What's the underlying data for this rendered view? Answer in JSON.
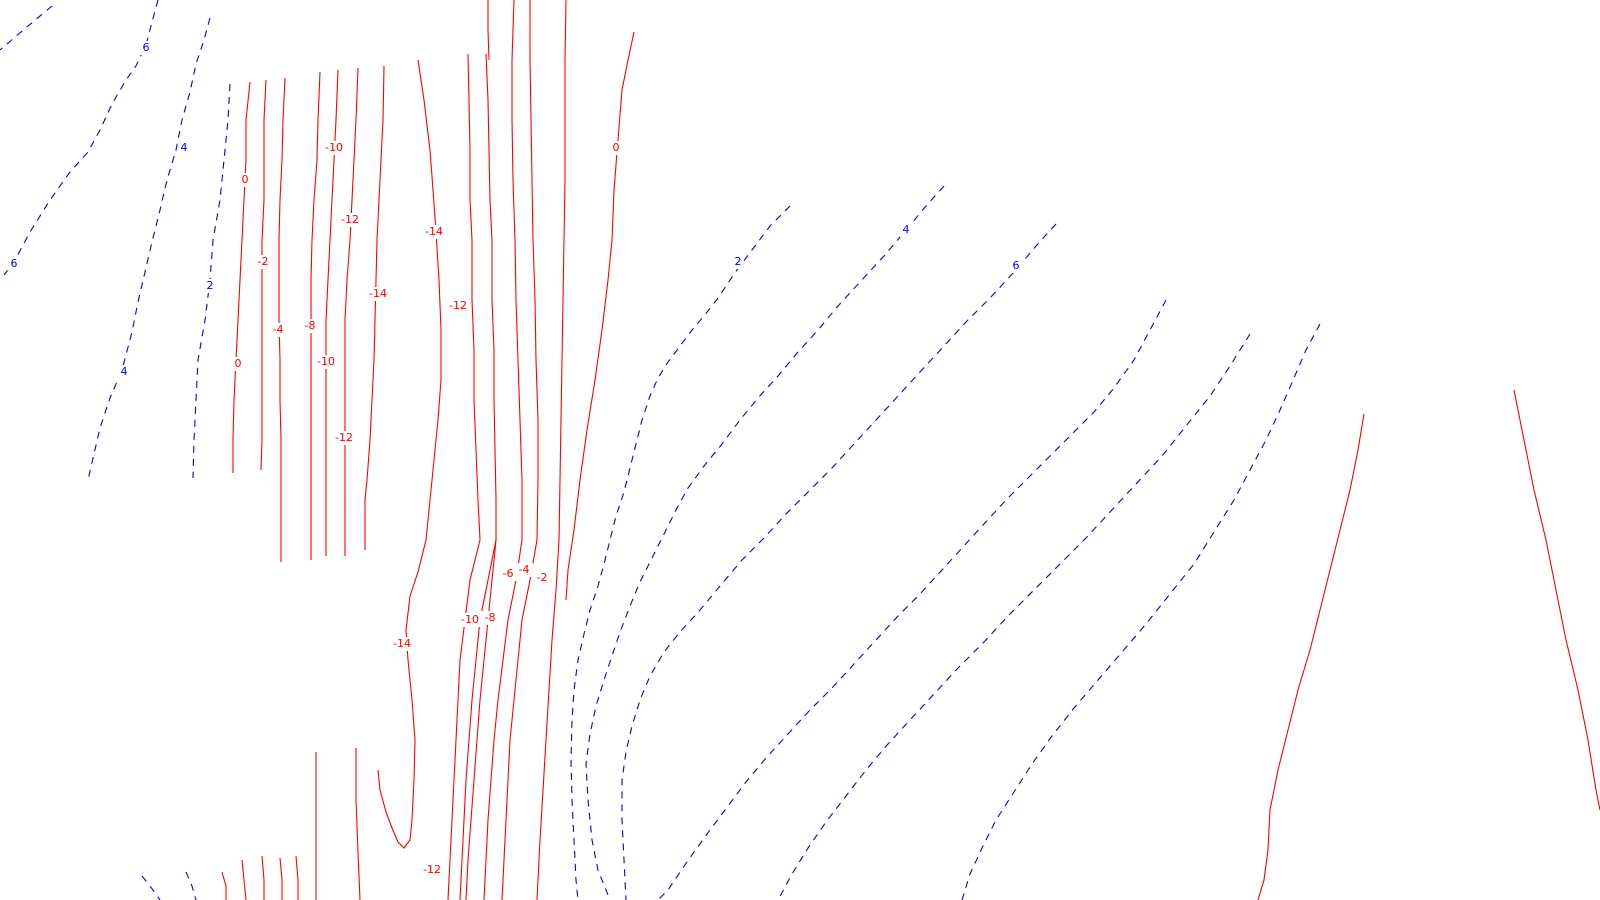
{
  "chart_data": {
    "type": "contour",
    "title": "",
    "xlabel": "",
    "ylabel": "",
    "grid": false,
    "axes_visible": false,
    "negative_style": {
      "color": "#ff0000",
      "dash": "solid"
    },
    "positive_style": {
      "color": "#0000ff",
      "dash": "dashed"
    },
    "contour_levels_shown": [
      -14,
      -12,
      -10,
      -8,
      -6,
      -4,
      -2,
      0,
      2,
      4,
      6
    ],
    "labels": [
      {
        "text": "6",
        "level": 6
      },
      {
        "text": "4",
        "level": 4
      },
      {
        "text": "6",
        "level": 6
      },
      {
        "text": "2",
        "level": 2
      },
      {
        "text": "4",
        "level": 4
      },
      {
        "text": "0",
        "level": 0
      },
      {
        "text": "-2",
        "level": -2
      },
      {
        "text": "-4",
        "level": -4
      },
      {
        "text": "0",
        "level": 0
      },
      {
        "text": "-8",
        "level": -8
      },
      {
        "text": "-10",
        "level": -10
      },
      {
        "text": "-12",
        "level": -12
      },
      {
        "text": "-10",
        "level": -10
      },
      {
        "text": "-12",
        "level": -12
      },
      {
        "text": "-14",
        "level": -14
      },
      {
        "text": "-14",
        "level": -14
      },
      {
        "text": "-12",
        "level": -12
      },
      {
        "text": "0",
        "level": 0
      },
      {
        "text": "-6",
        "level": -6
      },
      {
        "text": "-4",
        "level": -4
      },
      {
        "text": "-2",
        "level": -2
      },
      {
        "text": "-10",
        "level": -10
      },
      {
        "text": "-8",
        "level": -8
      },
      {
        "text": "-14",
        "level": -14
      },
      {
        "text": "-12",
        "level": -12
      },
      {
        "text": "2",
        "level": 2
      },
      {
        "text": "4",
        "level": 4
      },
      {
        "text": "6",
        "level": 6
      }
    ]
  }
}
